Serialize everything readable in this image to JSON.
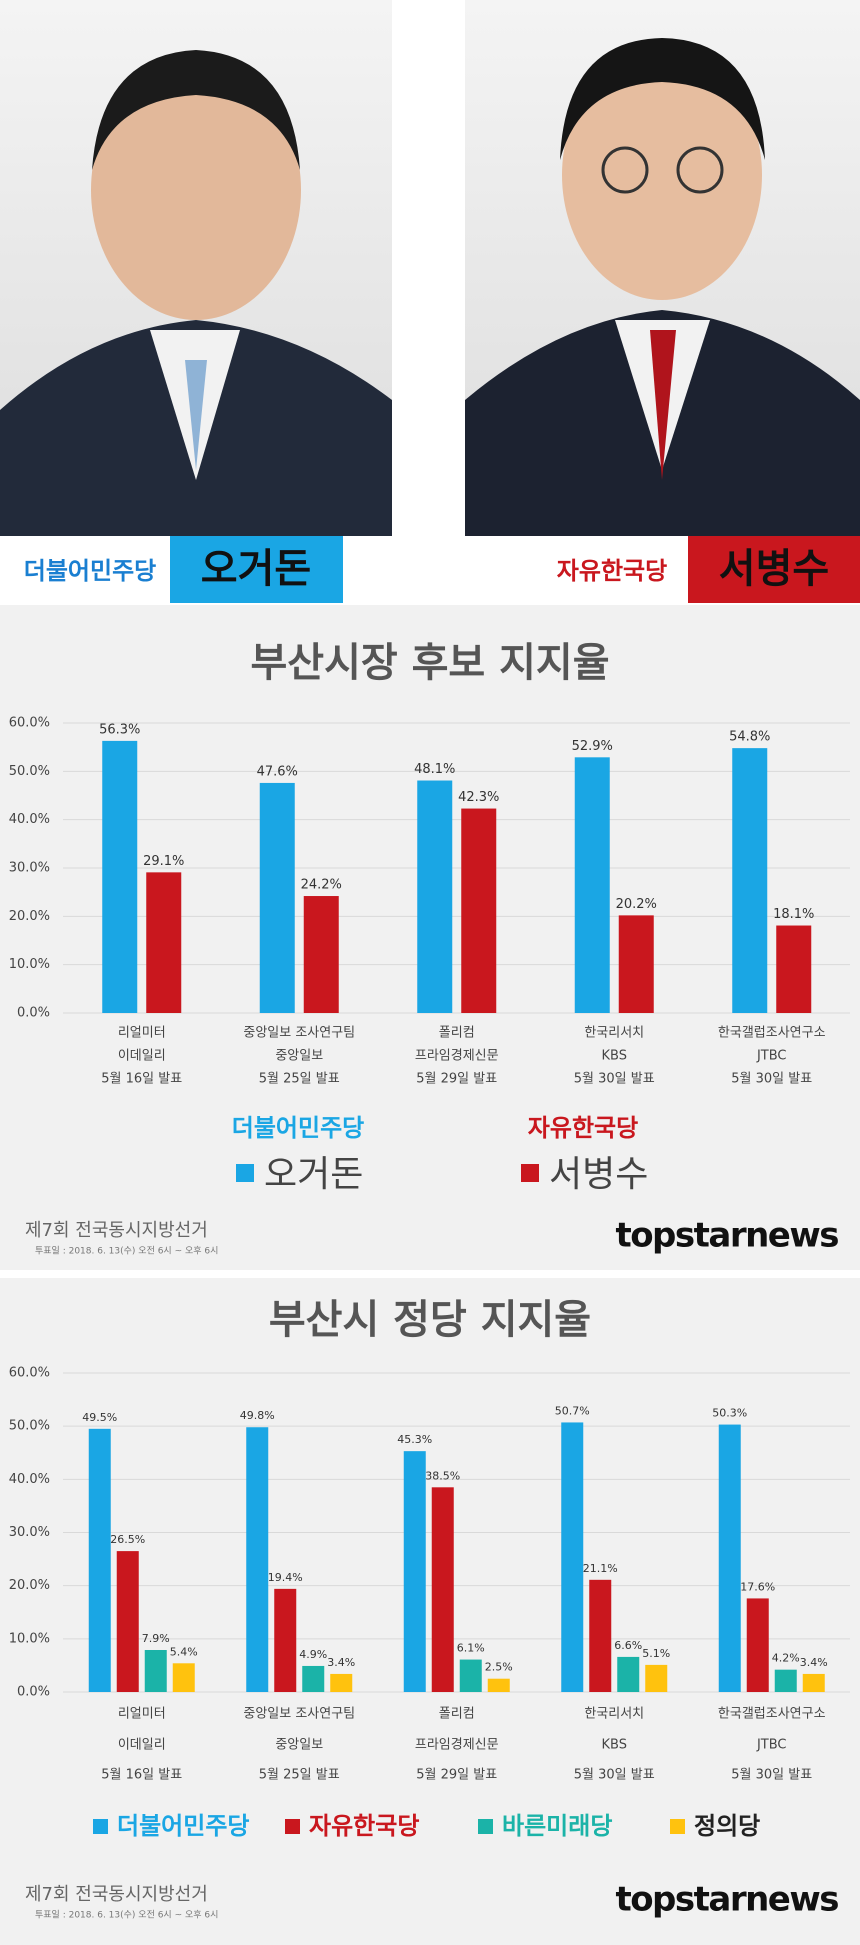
{
  "header": {
    "candidates": [
      {
        "party": "더불어민주당",
        "name": "오거돈"
      },
      {
        "party": "자유한국당",
        "name": "서병수"
      }
    ]
  },
  "chart_data": [
    {
      "type": "bar",
      "title": "부산시장 후보 지지율",
      "categories": [
        [
          "리얼미터",
          "이데일리",
          "5월 16일 발표"
        ],
        [
          "중앙일보 조사연구팀",
          "중앙일보",
          "5월 25일 발표"
        ],
        [
          "폴리컴",
          "프라임경제신문",
          "5월 29일 발표"
        ],
        [
          "한국리서치",
          "KBS",
          "5월 30일 발표"
        ],
        [
          "한국갤럽조사연구소",
          "JTBC",
          "5월 30일 발표"
        ]
      ],
      "series": [
        {
          "name": "오거돈",
          "party": "더불어민주당",
          "color": "#1aa6e4",
          "values": [
            56.3,
            47.6,
            48.1,
            52.9,
            54.8
          ],
          "value_labels": [
            "56.3%",
            "47.6%",
            "48.1%",
            "52.9%",
            "54.8%"
          ]
        },
        {
          "name": "서병수",
          "party": "자유한국당",
          "color": "#c9171e",
          "values": [
            29.1,
            24.2,
            42.3,
            20.2,
            18.1
          ],
          "value_labels": [
            "29.1%",
            "24.2%",
            "42.3%",
            "20.2%",
            "18.1%"
          ]
        }
      ],
      "ylim": [
        0,
        60
      ],
      "yticks": [
        {
          "value": 0,
          "label": "0.0%"
        },
        {
          "value": 10,
          "label": "10.0%"
        },
        {
          "value": 20,
          "label": "20.0%"
        },
        {
          "value": 30,
          "label": "30.0%"
        },
        {
          "value": 40,
          "label": "40.0%"
        },
        {
          "value": 50,
          "label": "50.0%"
        },
        {
          "value": 60,
          "label": "60.0%"
        }
      ],
      "grid": true
    },
    {
      "type": "bar",
      "title": "부산시 정당 지지율",
      "categories": [
        [
          "리얼미터",
          "이데일리",
          "5월 16일 발표"
        ],
        [
          "중앙일보 조사연구팀",
          "중앙일보",
          "5월 25일 발표"
        ],
        [
          "폴리컴",
          "프라임경제신문",
          "5월 29일 발표"
        ],
        [
          "한국리서치",
          "KBS",
          "5월 30일 발표"
        ],
        [
          "한국갤럽조사연구소",
          "JTBC",
          "5월 30일 발표"
        ]
      ],
      "series": [
        {
          "name": "더불어민주당",
          "color": "#1aa6e4",
          "values": [
            49.5,
            49.8,
            45.3,
            50.7,
            50.3
          ],
          "value_labels": [
            "49.5%",
            "49.8%",
            "45.3%",
            "50.7%",
            "50.3%"
          ]
        },
        {
          "name": "자유한국당",
          "color": "#c9171e",
          "values": [
            26.5,
            19.4,
            38.5,
            21.1,
            17.6
          ],
          "value_labels": [
            "26.5%",
            "19.4%",
            "38.5%",
            "21.1%",
            "17.6%"
          ]
        },
        {
          "name": "바른미래당",
          "color": "#1bb3a8",
          "values": [
            7.9,
            4.9,
            6.1,
            6.6,
            4.2
          ],
          "value_labels": [
            "7.9%",
            "4.9%",
            "6.1%",
            "6.6%",
            "4.2%"
          ]
        },
        {
          "name": "정의당",
          "color": "#ffc20e",
          "values": [
            5.4,
            3.4,
            2.5,
            5.1,
            3.4
          ],
          "value_labels": [
            "5.4%",
            "3.4%",
            "2.5%",
            "5.1%",
            "3.4%"
          ]
        }
      ],
      "ylim": [
        0,
        60
      ],
      "yticks": [
        {
          "value": 0,
          "label": "0.0%"
        },
        {
          "value": 10,
          "label": "10.0%"
        },
        {
          "value": 20,
          "label": "20.0%"
        },
        {
          "value": 30,
          "label": "30.0%"
        },
        {
          "value": 40,
          "label": "40.0%"
        },
        {
          "value": 50,
          "label": "50.0%"
        },
        {
          "value": 60,
          "label": "60.0%"
        }
      ],
      "grid": true
    }
  ],
  "footer": {
    "election": "제7회 전국동시지방선거",
    "date": "투표일 : 2018. 6. 13(수) 오전 6시 ~ 오후 6시",
    "brand": "topstarnews"
  }
}
